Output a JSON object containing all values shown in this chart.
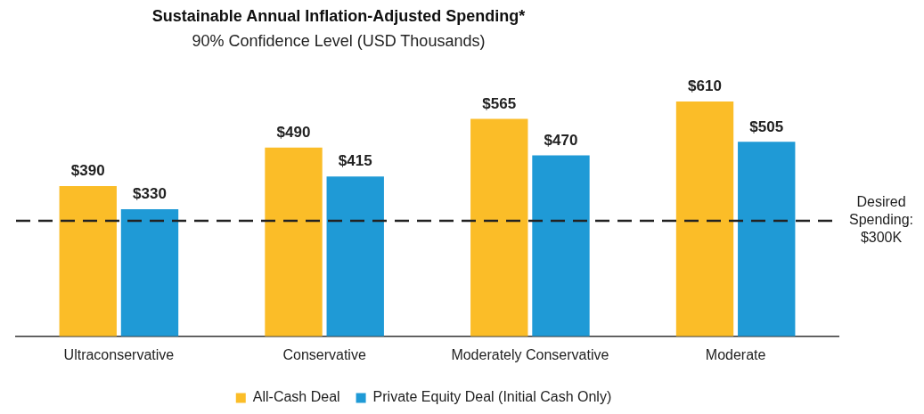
{
  "chart_data": {
    "type": "bar",
    "title": "Sustainable Annual Inflation-Adjusted Spending*",
    "subtitle": "90% Confidence Level (USD Thousands)",
    "categories": [
      "Ultraconservative",
      "Conservative",
      "Moderately Conservative",
      "Moderate"
    ],
    "series": [
      {
        "name": "All-Cash Deal",
        "color": "#fbbd28",
        "values": [
          390,
          490,
          565,
          610
        ],
        "value_labels": [
          "$390",
          "$490",
          "$565",
          "$610"
        ]
      },
      {
        "name": "Private Equity Deal (Initial Cash Only)",
        "color": "#1f9ad6",
        "values": [
          330,
          415,
          470,
          505
        ],
        "value_labels": [
          "$330",
          "$415",
          "$470",
          "$505"
        ]
      }
    ],
    "ref_lines": [
      {
        "axis": "y",
        "value": 300,
        "label": "Desired Spending: $300K",
        "color": "#222222",
        "line_style": "dashed"
      }
    ],
    "legend": "bottom",
    "grid": false
  }
}
